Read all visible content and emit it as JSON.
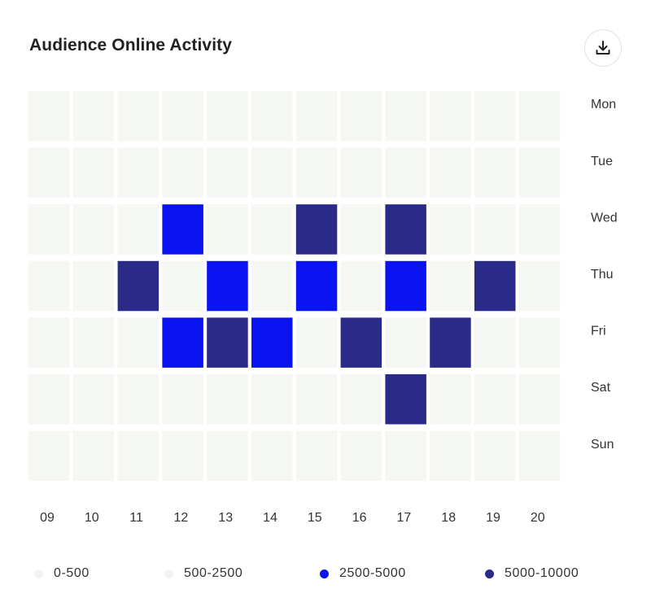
{
  "header": {
    "title": "Audience Online Activity",
    "download_icon": "download-icon"
  },
  "colors": {
    "low": "#f5f7f3",
    "mid_low": "#f5f7f3",
    "mid_high": "#0a14f0",
    "high": "#2a2a88",
    "legend_low": "#f2f2f2",
    "legend_mid_low": "#f2f2f2"
  },
  "chart_data": {
    "type": "heatmap",
    "title": "Audience Online Activity",
    "x": [
      "09",
      "10",
      "11",
      "12",
      "13",
      "14",
      "15",
      "16",
      "17",
      "18",
      "19",
      "20"
    ],
    "y": [
      "Mon",
      "Tue",
      "Wed",
      "Thu",
      "Fri",
      "Sat",
      "Sun"
    ],
    "bins": [
      "0-500",
      "500-2500",
      "2500-5000",
      "5000-10000"
    ],
    "levels": [
      [
        0,
        0,
        0,
        0,
        0,
        0,
        0,
        0,
        0,
        0,
        0,
        0
      ],
      [
        0,
        0,
        0,
        0,
        0,
        0,
        0,
        0,
        0,
        0,
        0,
        0
      ],
      [
        0,
        0,
        0,
        2,
        0,
        0,
        3,
        0,
        3,
        0,
        0,
        0
      ],
      [
        0,
        0,
        3,
        0,
        2,
        0,
        2,
        0,
        2,
        0,
        3,
        0
      ],
      [
        0,
        0,
        0,
        2,
        3,
        2,
        0,
        3,
        0,
        3,
        0,
        0
      ],
      [
        0,
        0,
        0,
        0,
        0,
        0,
        0,
        0,
        3,
        0,
        0,
        0
      ],
      [
        0,
        0,
        0,
        0,
        0,
        0,
        0,
        0,
        0,
        0,
        0,
        0
      ]
    ],
    "legend_position": "bottom"
  },
  "legend": {
    "items": [
      {
        "label": "0-500"
      },
      {
        "label": "500-2500"
      },
      {
        "label": "2500-5000"
      },
      {
        "label": "5000-10000"
      }
    ]
  }
}
